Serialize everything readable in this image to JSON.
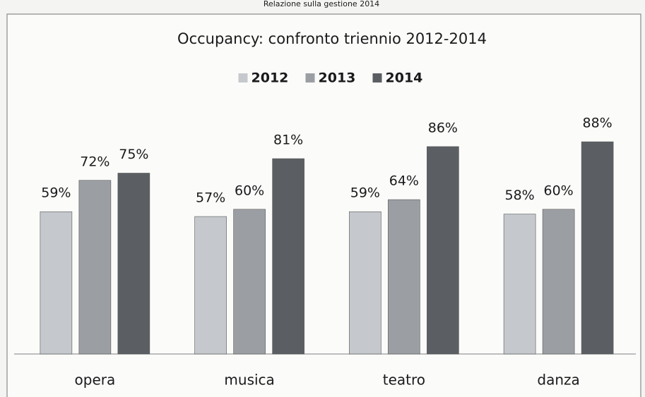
{
  "header": "Relazione sulla gestione  2014",
  "chart_data": {
    "type": "bar",
    "title": "Occupancy: confronto triennio 2012-2014",
    "categories": [
      "opera",
      "musica",
      "teatro",
      "danza"
    ],
    "series": [
      {
        "name": "2012",
        "color": "#c5c9cd",
        "values": [
          59,
          57,
          59,
          58
        ],
        "value_labels": [
          "59%",
          "57%",
          "59%",
          "58%"
        ]
      },
      {
        "name": "2013",
        "color": "#9b9fa3",
        "values": [
          72,
          60,
          64,
          60
        ],
        "value_labels": [
          "72%",
          "60%",
          "64%",
          "60%"
        ]
      },
      {
        "name": "2014",
        "color": "#5b5f63",
        "values": [
          75,
          81,
          86,
          88
        ],
        "value_labels": [
          "75%",
          "81%",
          "86%",
          "88%"
        ]
      }
    ],
    "ylim": [
      0,
      100
    ],
    "legend": "top"
  }
}
